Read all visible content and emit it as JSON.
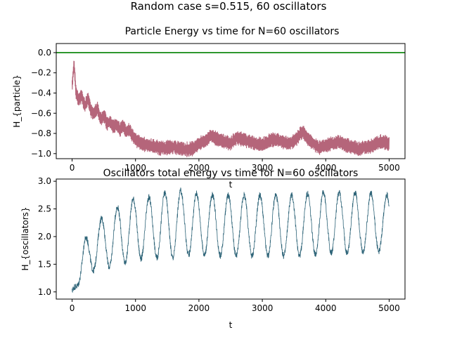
{
  "figure": {
    "suptitle": "Random case s=0.515, 60 oscillators"
  },
  "chart_data": [
    {
      "type": "line",
      "title": "Particle Energy vs time for N=60 oscillators",
      "xlabel": "t",
      "ylabel": "H_{particle}",
      "xlim": [
        -250,
        5250
      ],
      "ylim": [
        -1.05,
        0.09
      ],
      "xticks": [
        0,
        1000,
        2000,
        3000,
        4000,
        5000
      ],
      "yticks": [
        0.0,
        -0.2,
        -0.4,
        -0.6,
        -0.8,
        -1.0
      ],
      "ytick_labels": [
        "0.0",
        "−0.2",
        "−0.4",
        "−0.6",
        "−0.8",
        "−1.0"
      ],
      "grid": false,
      "reference_line": {
        "y": 0.0,
        "color": "#008000"
      },
      "series": [
        {
          "color": "#b5657a",
          "band_width": 0.07,
          "x": [
            0,
            30,
            60,
            100,
            150,
            200,
            250,
            300,
            350,
            400,
            450,
            500,
            550,
            600,
            650,
            700,
            750,
            800,
            850,
            900,
            950,
            1000,
            1100,
            1200,
            1300,
            1400,
            1500,
            1600,
            1700,
            1800,
            1900,
            2000,
            2100,
            2200,
            2300,
            2400,
            2500,
            2600,
            2700,
            2800,
            2900,
            3000,
            3100,
            3200,
            3300,
            3400,
            3500,
            3600,
            3650,
            3700,
            3800,
            3900,
            4000,
            4100,
            4200,
            4300,
            4400,
            4500,
            4600,
            4700,
            4800,
            4900,
            5000
          ],
          "values": [
            -0.35,
            -0.1,
            -0.38,
            -0.48,
            -0.42,
            -0.53,
            -0.46,
            -0.58,
            -0.6,
            -0.55,
            -0.66,
            -0.62,
            -0.7,
            -0.68,
            -0.74,
            -0.71,
            -0.77,
            -0.72,
            -0.78,
            -0.76,
            -0.82,
            -0.86,
            -0.9,
            -0.92,
            -0.93,
            -0.95,
            -0.94,
            -0.93,
            -0.95,
            -0.96,
            -0.95,
            -0.9,
            -0.87,
            -0.82,
            -0.86,
            -0.88,
            -0.9,
            -0.84,
            -0.86,
            -0.88,
            -0.9,
            -0.91,
            -0.88,
            -0.86,
            -0.88,
            -0.9,
            -0.88,
            -0.8,
            -0.78,
            -0.84,
            -0.9,
            -0.94,
            -0.92,
            -0.9,
            -0.88,
            -0.91,
            -0.93,
            -0.95,
            -0.94,
            -0.93,
            -0.9,
            -0.88,
            -0.9
          ]
        }
      ]
    },
    {
      "type": "line",
      "title": "Oscillators total energy vs time for N=60 oscillators",
      "xlabel": "t",
      "ylabel": "H_{oscillators}",
      "xlim": [
        -250,
        5250
      ],
      "ylim": [
        0.87,
        3.04
      ],
      "xticks": [
        0,
        1000,
        2000,
        3000,
        4000,
        5000
      ],
      "yticks": [
        1.0,
        1.5,
        2.0,
        2.5,
        3.0
      ],
      "ytick_labels": [
        "1.0",
        "1.5",
        "2.0",
        "2.5",
        "3.0"
      ],
      "grid": false,
      "series": [
        {
          "color": "#2e6478",
          "period": 250,
          "phase_offset": 150,
          "x": [
            0,
            200,
            400,
            600,
            800,
            1000,
            1200,
            1400,
            1600,
            1800,
            2000,
            2500,
            3000,
            3500,
            4000,
            4500,
            5000
          ],
          "mean": [
            1.0,
            1.62,
            1.85,
            1.95,
            2.05,
            2.15,
            2.15,
            2.2,
            2.22,
            2.25,
            2.22,
            2.2,
            2.2,
            2.2,
            2.25,
            2.25,
            2.25
          ],
          "amplitude": [
            0.02,
            0.33,
            0.42,
            0.5,
            0.55,
            0.55,
            0.55,
            0.58,
            0.6,
            0.58,
            0.55,
            0.55,
            0.55,
            0.55,
            0.55,
            0.55,
            0.5
          ]
        }
      ]
    }
  ]
}
